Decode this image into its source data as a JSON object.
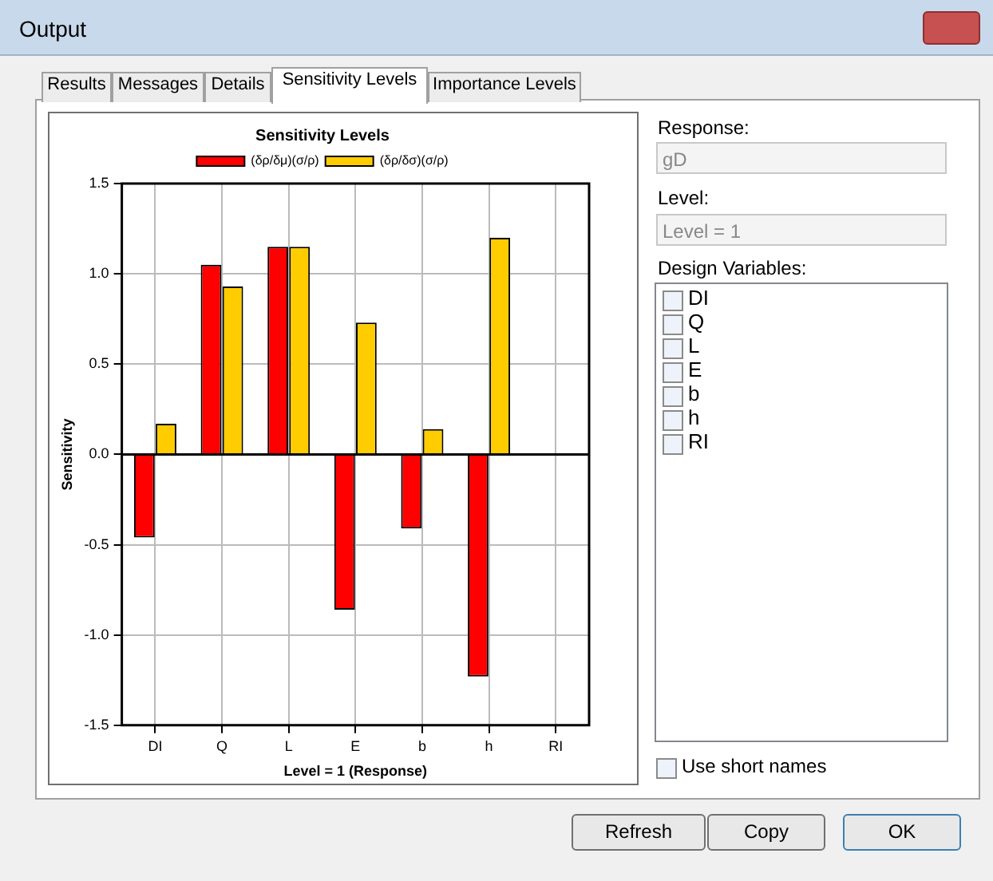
{
  "chart_data": {
    "type": "bar",
    "title": "Sensitivity Levels",
    "xlabel": "Level = 1 (Response)",
    "ylabel": "Sensitivity",
    "categories": [
      "DI",
      "Q",
      "L",
      "E",
      "b",
      "h",
      "RI"
    ],
    "series": [
      {
        "name": "(δρ/δμ)(σ/ρ)",
        "color": "#ff0000",
        "values": [
          -0.46,
          1.05,
          1.15,
          -0.86,
          -0.41,
          -1.23,
          0
        ]
      },
      {
        "name": "(δρ/δσ)(σ/ρ)",
        "color": "#ffcc00",
        "values": [
          0.17,
          0.93,
          1.15,
          0.73,
          0.14,
          1.2,
          0
        ]
      }
    ],
    "ylim": [
      -1.5,
      1.5
    ],
    "yticks": [
      {
        "value": -1.5,
        "label": "-1.5"
      },
      {
        "value": -1,
        "label": "-1.0"
      },
      {
        "value": -0.5,
        "label": "-0.5"
      },
      {
        "value": 0,
        "label": "0.0"
      },
      {
        "value": 0.5,
        "label": "0.5"
      },
      {
        "value": 1,
        "label": "1.0"
      },
      {
        "value": 1.5,
        "label": "1.5"
      }
    ],
    "grid": true,
    "legend": "top",
    "annotations": [
      "Output",
      "Results",
      "Messages",
      "Details",
      "Sensitivity Levels",
      "Importance Levels",
      "Response:",
      "gD",
      "Level:",
      "Level = 1",
      "Design Variables:",
      "DI",
      "Q",
      "L",
      "E",
      "b",
      "h",
      "RI",
      "Use short names",
      "Refresh",
      "Copy",
      "OK"
    ]
  }
}
